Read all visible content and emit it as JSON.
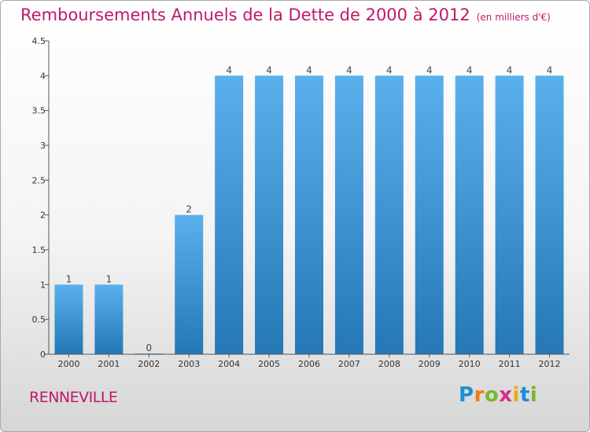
{
  "title": "Remboursements Annuels de la Dette de 2000 à 2012",
  "unit": "(en milliers d'€)",
  "commune": "RENNEVILLE",
  "logo": {
    "text": "Proxiti",
    "letter_colors": [
      "#1a8fd8",
      "#f07b16",
      "#7ab828",
      "#d62e8a",
      "#f0a818",
      "#1a8fd8",
      "#7ab828"
    ]
  },
  "colors": {
    "bar_top": "#5ab0ec",
    "bar_bottom": "#2577b6",
    "title": "#c0186a",
    "axis": "#555555"
  },
  "chart_data": {
    "type": "bar",
    "categories": [
      "2000",
      "2001",
      "2002",
      "2003",
      "2004",
      "2005",
      "2006",
      "2007",
      "2008",
      "2009",
      "2010",
      "2011",
      "2012"
    ],
    "values": [
      1,
      1,
      0,
      2,
      4,
      4,
      4,
      4,
      4,
      4,
      4,
      4,
      4
    ],
    "data_labels": [
      "1",
      "1",
      "0",
      "2",
      "4",
      "4",
      "4",
      "4",
      "4",
      "4",
      "4",
      "4",
      "4"
    ],
    "ylim": [
      0,
      4.5
    ],
    "yticks": [
      "0",
      "0.5",
      "1",
      "1.5",
      "2",
      "2.5",
      "3",
      "3.5",
      "4",
      "4.5"
    ],
    "grid": false,
    "title": "Remboursements Annuels de la Dette de 2000 à 2012",
    "xlabel": "",
    "ylabel": ""
  }
}
